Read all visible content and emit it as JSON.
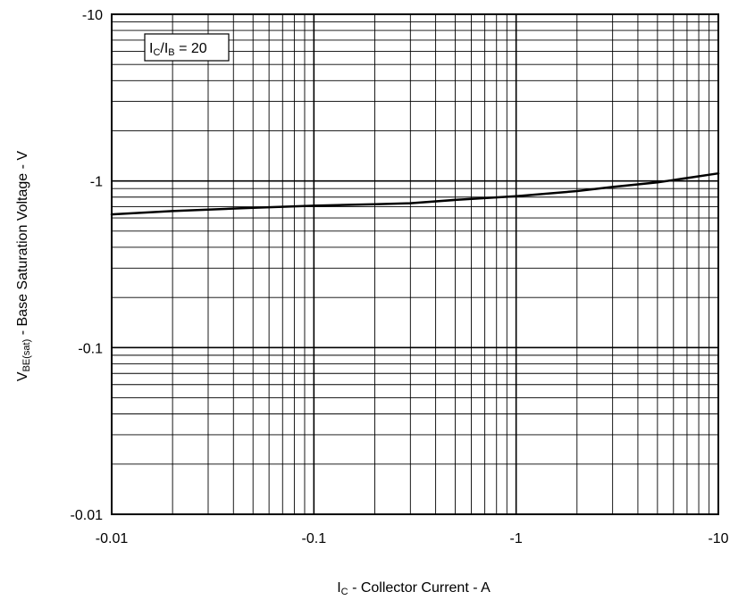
{
  "chart_data": {
    "type": "line",
    "x_scale": "log",
    "y_scale": "log",
    "xlim": [
      -0.01,
      -10
    ],
    "ylim": [
      -0.01,
      -10
    ],
    "grid": true,
    "xticks": [
      "-0.01",
      "-0.1",
      "-1",
      "-10"
    ],
    "yticks": [
      "-10",
      "-1",
      "-0.1",
      "-0.01"
    ],
    "xlabel": {
      "main": "I",
      "sub": "C",
      "rest": " - Collector Current - A"
    },
    "ylabel": {
      "main": "V",
      "sub": "BE(sat)",
      "rest": " - Base Saturation Voltage - V"
    },
    "annotation": {
      "i1": "I",
      "s1": "C",
      "slash": "/I",
      "s2": "B",
      "rest": " = 20"
    },
    "series": [
      {
        "x": [
          -0.01,
          -0.02,
          -0.05,
          -0.1,
          -0.2,
          -0.3,
          -0.5,
          -1,
          -2,
          -3,
          -5,
          -10
        ],
        "y": [
          -0.63,
          -0.66,
          -0.69,
          -0.71,
          -0.725,
          -0.735,
          -0.77,
          -0.81,
          -0.87,
          -0.92,
          -0.98,
          -1.11
        ],
        "color": "#000000"
      }
    ]
  }
}
